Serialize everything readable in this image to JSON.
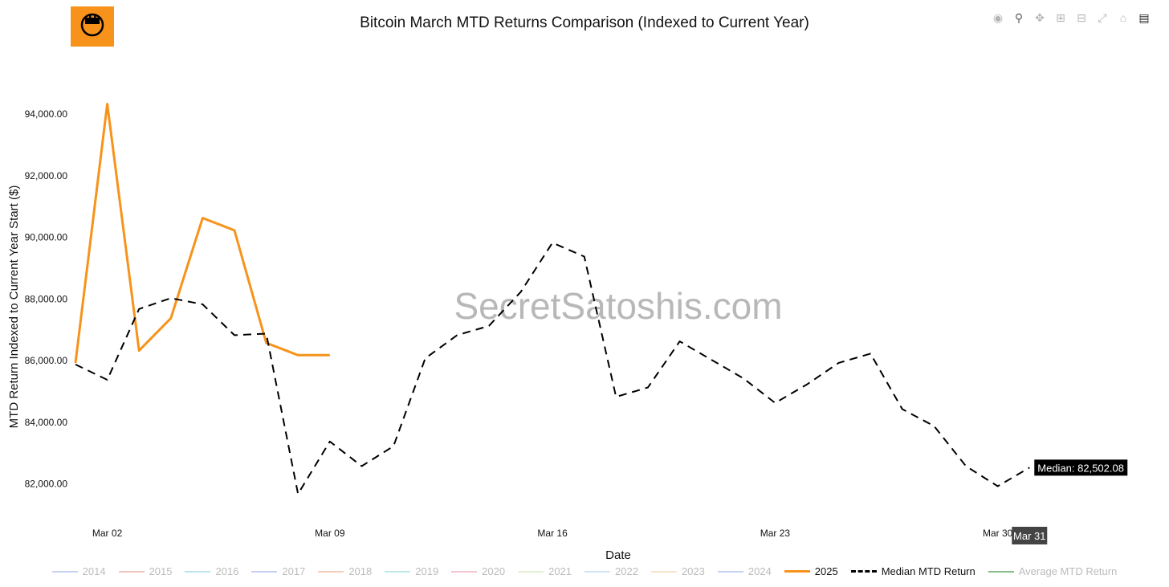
{
  "title": "Bitcoin March MTD Returns Comparison (Indexed to Current Year)",
  "watermark": "SecretSatoshis.com",
  "modebar": [
    "camera-icon",
    "zoom-icon",
    "pan-icon",
    "zoom-in-icon",
    "zoom-out-icon",
    "autoscale-icon",
    "home-icon",
    "plotly-logo-icon"
  ],
  "tooltip": {
    "text": "Median: 82,502.08",
    "x_label": "Mar 31"
  },
  "legend": [
    {
      "name": "2014",
      "color": "#c6d3f0",
      "dash": "solid",
      "active": false
    },
    {
      "name": "2015",
      "color": "#f3c4bb",
      "dash": "solid",
      "active": false
    },
    {
      "name": "2016",
      "color": "#bde3ef",
      "dash": "solid",
      "active": false
    },
    {
      "name": "2017",
      "color": "#c7cff2",
      "dash": "solid",
      "active": false
    },
    {
      "name": "2018",
      "color": "#f6cdb9",
      "dash": "solid",
      "active": false
    },
    {
      "name": "2019",
      "color": "#bfe9e6",
      "dash": "solid",
      "active": false
    },
    {
      "name": "2020",
      "color": "#f3c6d0",
      "dash": "solid",
      "active": false
    },
    {
      "name": "2021",
      "color": "#e4efd3",
      "dash": "solid",
      "active": false
    },
    {
      "name": "2022",
      "color": "#cfe6f7",
      "dash": "solid",
      "active": false
    },
    {
      "name": "2023",
      "color": "#f8e3c8",
      "dash": "solid",
      "active": false
    },
    {
      "name": "2024",
      "color": "#c6d3f0",
      "dash": "solid",
      "active": false
    },
    {
      "name": "2025",
      "color": "#f7931a",
      "dash": "solid",
      "active": true
    },
    {
      "name": "Median MTD Return",
      "color": "#000000",
      "dash": "dash",
      "active": true
    },
    {
      "name": "Average MTD Return",
      "color": "#86bf86",
      "dash": "solid",
      "active": false
    }
  ],
  "chart_data": {
    "type": "line",
    "title": "Bitcoin March MTD Returns Comparison (Indexed to Current Year)",
    "xlabel": "Date",
    "ylabel": "MTD Return Indexed to Current Year Start ($)",
    "x_ticks": [
      {
        "day": 2,
        "label": "Mar 02"
      },
      {
        "day": 9,
        "label": "Mar 09"
      },
      {
        "day": 16,
        "label": "Mar 16"
      },
      {
        "day": 23,
        "label": "Mar 23"
      },
      {
        "day": 30,
        "label": "Mar 30"
      }
    ],
    "y_ticks": [
      82000,
      84000,
      86000,
      88000,
      90000,
      92000,
      94000
    ],
    "y_tick_labels": [
      "82,000.00",
      "84,000.00",
      "86,000.00",
      "88,000.00",
      "90,000.00",
      "92,000.00",
      "94,000.00"
    ],
    "xlim": [
      0.9,
      31.7
    ],
    "ylim": [
      81000,
      95200
    ],
    "grid": false,
    "legend_position": "bottom",
    "series": [
      {
        "name": "2025",
        "color": "#f7931a",
        "dash": "solid",
        "x": [
          1,
          2,
          3,
          4,
          5,
          6,
          7,
          8,
          9
        ],
        "y": [
          85900,
          94300,
          86300,
          87350,
          90600,
          90200,
          86550,
          86150,
          86150
        ]
      },
      {
        "name": "Median MTD Return",
        "color": "#000000",
        "dash": "dash",
        "x": [
          1,
          2,
          3,
          4,
          5,
          6,
          7,
          8,
          9,
          10,
          11,
          12,
          13,
          14,
          15,
          16,
          17,
          18,
          19,
          20,
          21,
          22,
          23,
          24,
          25,
          26,
          27,
          28,
          29,
          30,
          31
        ],
        "y": [
          85850,
          85350,
          87650,
          88000,
          87800,
          86800,
          86850,
          81650,
          83350,
          82550,
          83200,
          86050,
          86800,
          87100,
          88200,
          89800,
          89350,
          84800,
          85100,
          86600,
          86000,
          85400,
          84600,
          85200,
          85900,
          86200,
          84400,
          83850,
          82550,
          81900,
          82502.08
        ]
      }
    ]
  }
}
